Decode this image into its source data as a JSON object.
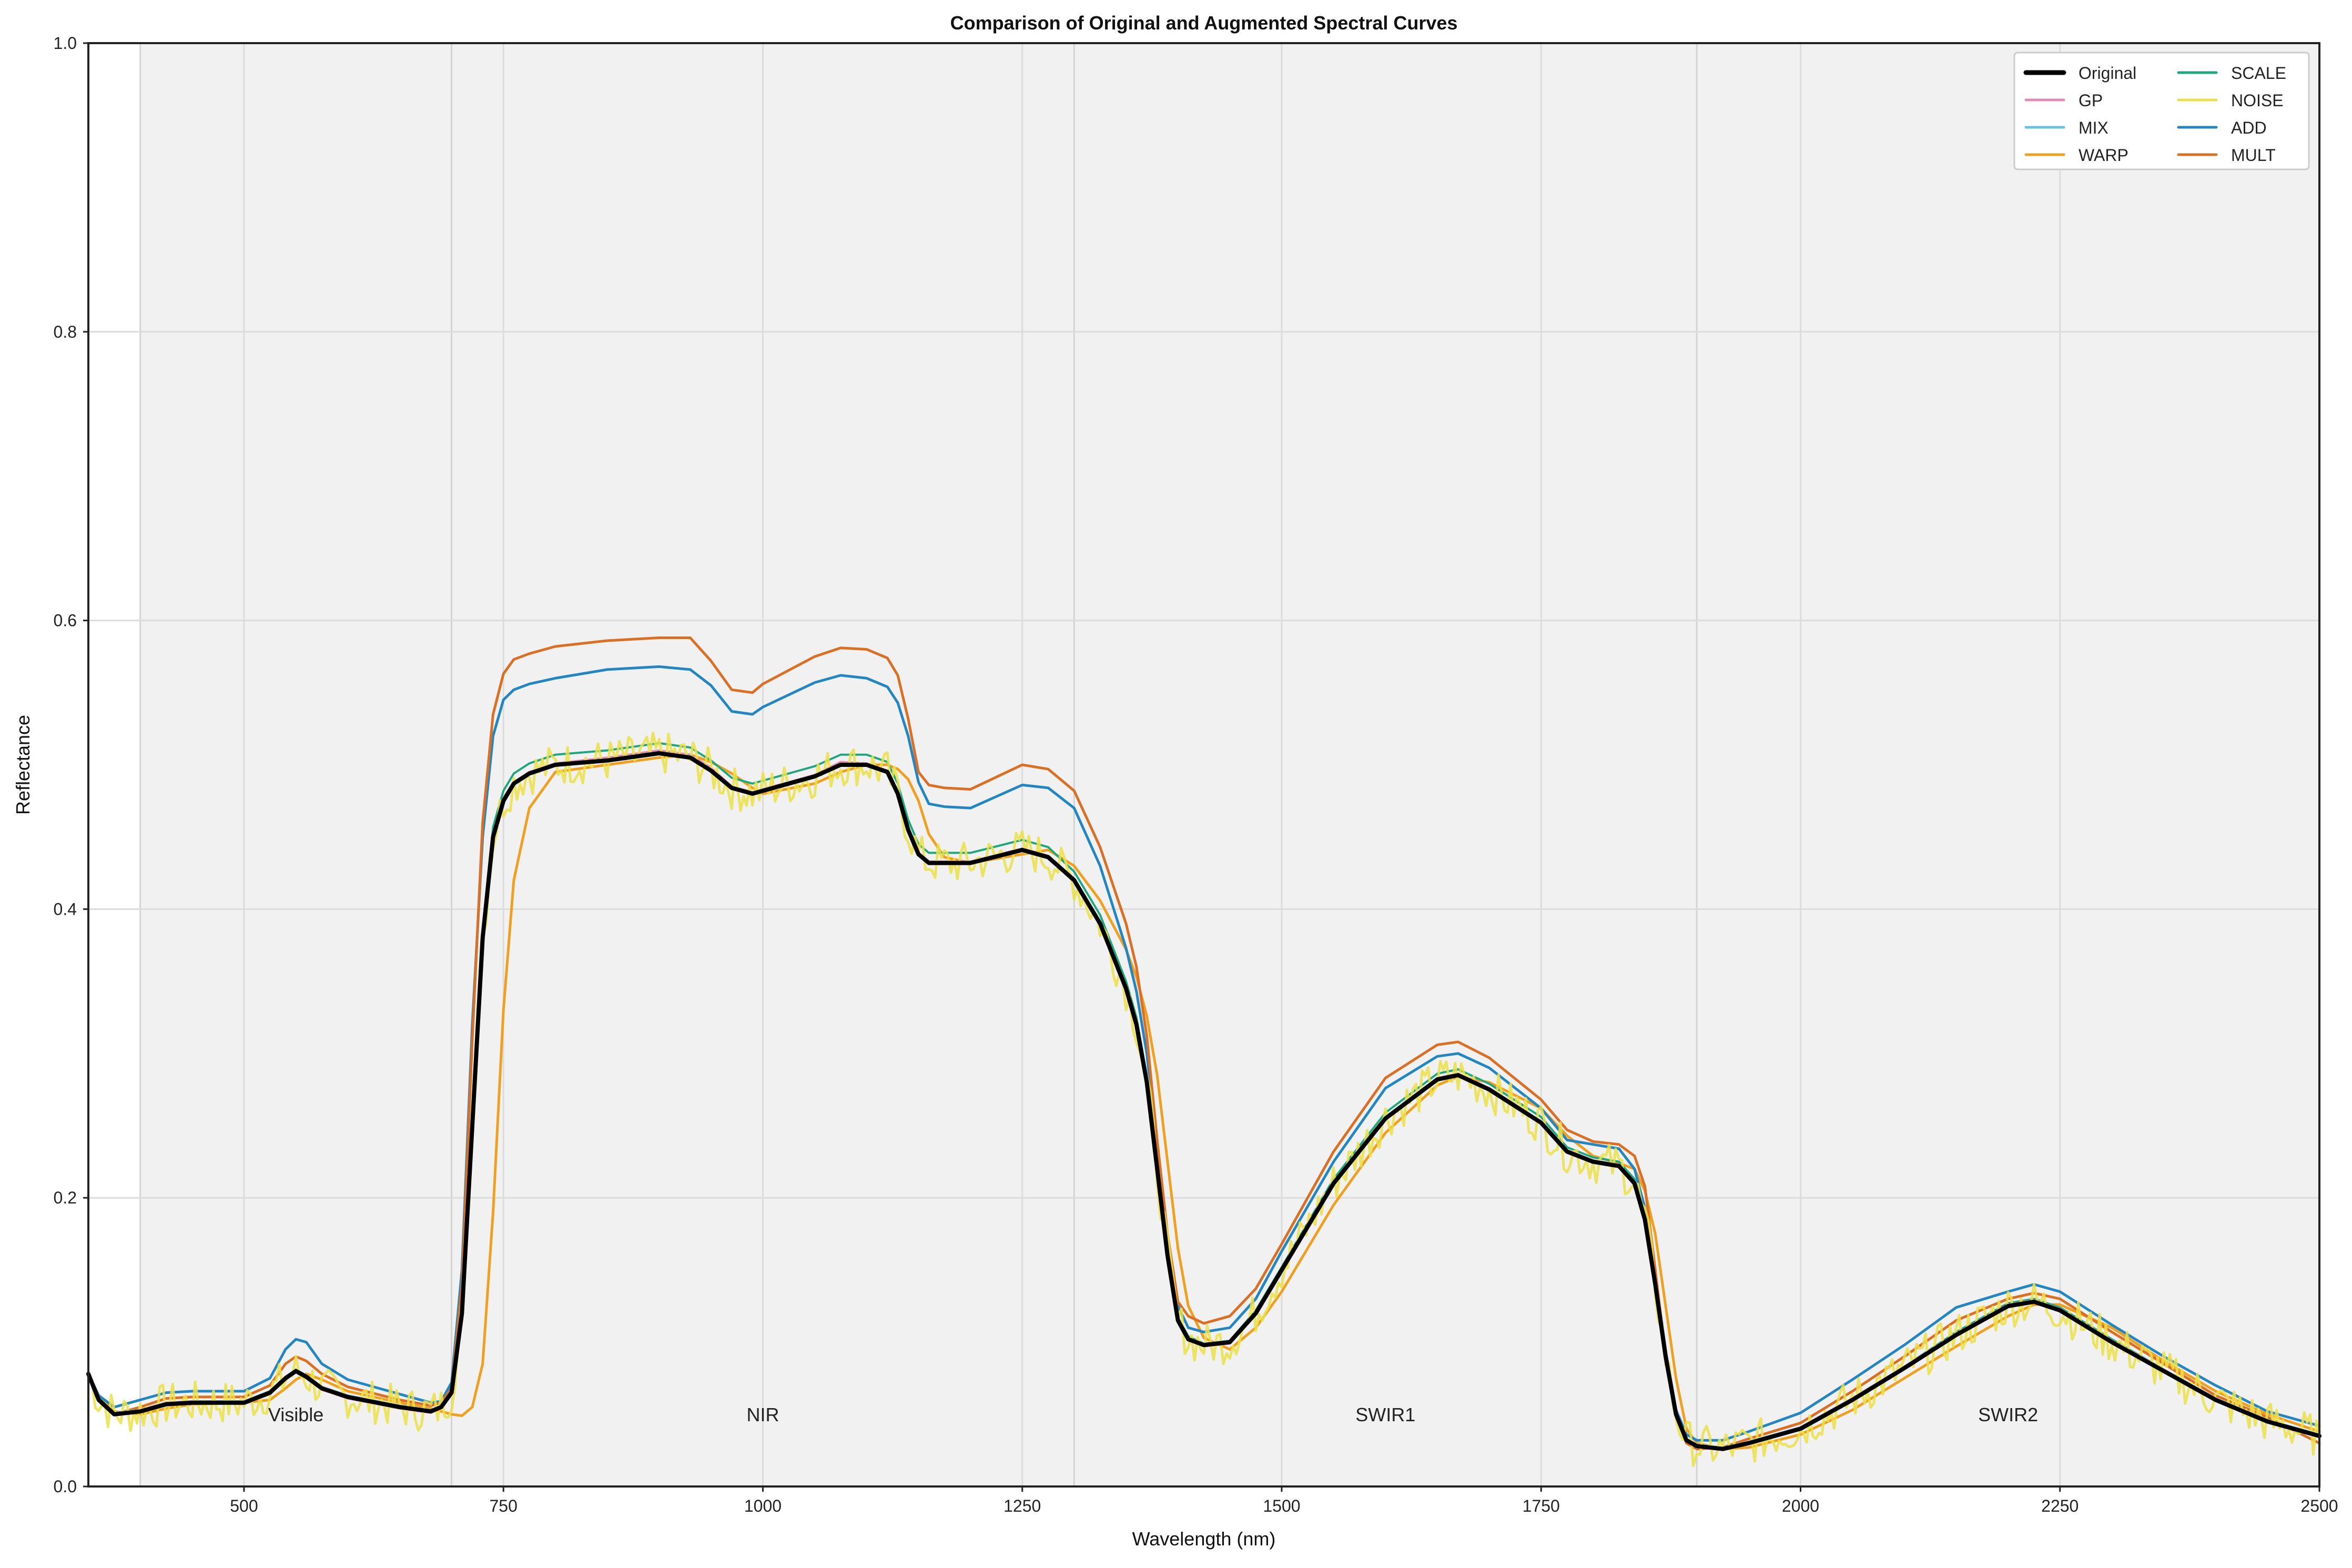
{
  "chart_data": {
    "type": "line",
    "title": "Comparison of Original and Augmented Spectral Curves",
    "xlabel": "Wavelength (nm)",
    "ylabel": "Reflectance",
    "xlim": [
      350,
      2500
    ],
    "ylim": [
      0.0,
      1.0
    ],
    "xticks": [
      "500",
      "750",
      "1000",
      "1250",
      "1500",
      "1750",
      "2000",
      "2250",
      "2500"
    ],
    "yticks": [
      "0.0",
      "0.2",
      "0.4",
      "0.6",
      "0.8",
      "1.0"
    ],
    "grid": true,
    "legend_position": "top-right",
    "regions": [
      {
        "label": "Visible",
        "start": 400,
        "end": 700
      },
      {
        "label": "NIR",
        "start": 700,
        "end": 1300
      },
      {
        "label": "SWIR1",
        "start": 1300,
        "end": 1900
      },
      {
        "label": "SWIR2",
        "start": 1900,
        "end": 2500
      }
    ],
    "x": [
      350,
      360,
      375,
      400,
      425,
      450,
      500,
      525,
      540,
      550,
      560,
      575,
      600,
      650,
      680,
      690,
      700,
      710,
      720,
      730,
      740,
      750,
      760,
      775,
      800,
      850,
      900,
      930,
      950,
      970,
      990,
      1000,
      1050,
      1075,
      1100,
      1120,
      1130,
      1140,
      1150,
      1160,
      1175,
      1200,
      1250,
      1275,
      1300,
      1325,
      1350,
      1360,
      1370,
      1380,
      1390,
      1400,
      1410,
      1425,
      1450,
      1475,
      1500,
      1550,
      1600,
      1650,
      1670,
      1700,
      1750,
      1775,
      1800,
      1825,
      1840,
      1850,
      1860,
      1870,
      1880,
      1890,
      1900,
      1925,
      1950,
      2000,
      2050,
      2100,
      2150,
      2200,
      2225,
      2250,
      2300,
      2350,
      2400,
      2450,
      2500
    ],
    "series": [
      {
        "name": "Original",
        "color": "#000000",
        "width": 8,
        "values": [
          0.078,
          0.06,
          0.05,
          0.052,
          0.057,
          0.058,
          0.058,
          0.065,
          0.075,
          0.08,
          0.076,
          0.068,
          0.062,
          0.055,
          0.052,
          0.055,
          0.065,
          0.12,
          0.25,
          0.38,
          0.45,
          0.475,
          0.487,
          0.494,
          0.5,
          0.503,
          0.508,
          0.505,
          0.496,
          0.484,
          0.48,
          0.482,
          0.492,
          0.5,
          0.5,
          0.495,
          0.48,
          0.455,
          0.438,
          0.432,
          0.432,
          0.432,
          0.441,
          0.436,
          0.42,
          0.39,
          0.345,
          0.32,
          0.28,
          0.22,
          0.16,
          0.115,
          0.102,
          0.098,
          0.1,
          0.12,
          0.15,
          0.21,
          0.255,
          0.282,
          0.285,
          0.275,
          0.252,
          0.232,
          0.225,
          0.222,
          0.21,
          0.185,
          0.14,
          0.09,
          0.05,
          0.032,
          0.028,
          0.026,
          0.03,
          0.04,
          0.06,
          0.082,
          0.105,
          0.125,
          0.128,
          0.122,
          0.1,
          0.08,
          0.06,
          0.045,
          0.035
        ]
      },
      {
        "name": "GP",
        "color": "#e08ab5",
        "width": 4,
        "values": [
          0.077,
          0.06,
          0.05,
          0.053,
          0.058,
          0.059,
          0.057,
          0.064,
          0.074,
          0.079,
          0.075,
          0.067,
          0.061,
          0.054,
          0.051,
          0.055,
          0.066,
          0.121,
          0.248,
          0.378,
          0.452,
          0.477,
          0.488,
          0.495,
          0.501,
          0.505,
          0.51,
          0.507,
          0.498,
          0.485,
          0.481,
          0.483,
          0.493,
          0.502,
          0.501,
          0.496,
          0.481,
          0.456,
          0.439,
          0.433,
          0.433,
          0.433,
          0.442,
          0.437,
          0.421,
          0.391,
          0.346,
          0.321,
          0.281,
          0.221,
          0.16,
          0.115,
          0.102,
          0.097,
          0.099,
          0.119,
          0.149,
          0.209,
          0.256,
          0.283,
          0.286,
          0.276,
          0.253,
          0.233,
          0.226,
          0.223,
          0.211,
          0.186,
          0.14,
          0.09,
          0.05,
          0.032,
          0.028,
          0.026,
          0.03,
          0.041,
          0.061,
          0.083,
          0.106,
          0.126,
          0.129,
          0.123,
          0.101,
          0.081,
          0.061,
          0.045,
          0.035
        ]
      },
      {
        "name": "MIX",
        "color": "#6bbfe0",
        "width": 4,
        "values": [
          0.078,
          0.061,
          0.051,
          0.053,
          0.058,
          0.059,
          0.059,
          0.066,
          0.076,
          0.081,
          0.077,
          0.069,
          0.063,
          0.056,
          0.053,
          0.056,
          0.066,
          0.12,
          0.249,
          0.38,
          0.451,
          0.476,
          0.488,
          0.495,
          0.5,
          0.503,
          0.508,
          0.505,
          0.496,
          0.484,
          0.48,
          0.482,
          0.492,
          0.5,
          0.5,
          0.495,
          0.48,
          0.455,
          0.438,
          0.432,
          0.432,
          0.432,
          0.441,
          0.436,
          0.42,
          0.39,
          0.345,
          0.32,
          0.28,
          0.22,
          0.16,
          0.116,
          0.103,
          0.099,
          0.101,
          0.121,
          0.151,
          0.211,
          0.256,
          0.283,
          0.286,
          0.276,
          0.253,
          0.233,
          0.226,
          0.223,
          0.211,
          0.186,
          0.141,
          0.091,
          0.051,
          0.033,
          0.029,
          0.027,
          0.031,
          0.041,
          0.061,
          0.083,
          0.106,
          0.126,
          0.129,
          0.123,
          0.101,
          0.081,
          0.061,
          0.046,
          0.036
        ]
      },
      {
        "name": "WARP",
        "color": "#f0a020",
        "width": 5,
        "values": [
          0.077,
          0.062,
          0.052,
          0.05,
          0.054,
          0.057,
          0.058,
          0.06,
          0.068,
          0.074,
          0.078,
          0.074,
          0.066,
          0.058,
          0.054,
          0.052,
          0.05,
          0.049,
          0.055,
          0.085,
          0.19,
          0.33,
          0.42,
          0.47,
          0.495,
          0.5,
          0.505,
          0.507,
          0.502,
          0.494,
          0.484,
          0.48,
          0.487,
          0.495,
          0.5,
          0.5,
          0.497,
          0.49,
          0.475,
          0.452,
          0.436,
          0.432,
          0.438,
          0.441,
          0.43,
          0.406,
          0.372,
          0.353,
          0.326,
          0.285,
          0.225,
          0.165,
          0.125,
          0.103,
          0.095,
          0.11,
          0.135,
          0.195,
          0.245,
          0.278,
          0.284,
          0.28,
          0.262,
          0.243,
          0.229,
          0.224,
          0.22,
          0.205,
          0.175,
          0.125,
          0.075,
          0.04,
          0.03,
          0.026,
          0.027,
          0.036,
          0.053,
          0.075,
          0.097,
          0.118,
          0.126,
          0.126,
          0.11,
          0.087,
          0.066,
          0.05,
          0.038
        ]
      },
      {
        "name": "SCALE",
        "color": "#1fa67f",
        "width": 4,
        "values": [
          0.079,
          0.061,
          0.051,
          0.053,
          0.058,
          0.059,
          0.059,
          0.066,
          0.076,
          0.081,
          0.077,
          0.069,
          0.063,
          0.056,
          0.053,
          0.056,
          0.066,
          0.122,
          0.254,
          0.386,
          0.457,
          0.482,
          0.494,
          0.501,
          0.507,
          0.51,
          0.515,
          0.512,
          0.503,
          0.491,
          0.487,
          0.489,
          0.499,
          0.507,
          0.507,
          0.502,
          0.487,
          0.462,
          0.445,
          0.439,
          0.439,
          0.439,
          0.448,
          0.443,
          0.426,
          0.396,
          0.35,
          0.325,
          0.284,
          0.223,
          0.162,
          0.117,
          0.104,
          0.099,
          0.101,
          0.122,
          0.152,
          0.213,
          0.259,
          0.286,
          0.289,
          0.279,
          0.256,
          0.235,
          0.228,
          0.225,
          0.213,
          0.188,
          0.142,
          0.091,
          0.051,
          0.032,
          0.028,
          0.026,
          0.03,
          0.041,
          0.061,
          0.083,
          0.107,
          0.127,
          0.13,
          0.124,
          0.102,
          0.081,
          0.061,
          0.046,
          0.036
        ]
      },
      {
        "name": "NOISE",
        "color": "#ebe04a",
        "width": 5,
        "values": [
          0.078,
          0.06,
          0.05,
          0.052,
          0.057,
          0.058,
          0.058,
          0.065,
          0.075,
          0.08,
          0.076,
          0.068,
          0.062,
          0.055,
          0.052,
          0.055,
          0.065,
          0.12,
          0.25,
          0.38,
          0.45,
          0.475,
          0.487,
          0.494,
          0.5,
          0.503,
          0.508,
          0.505,
          0.496,
          0.484,
          0.48,
          0.482,
          0.492,
          0.5,
          0.5,
          0.495,
          0.48,
          0.455,
          0.438,
          0.432,
          0.432,
          0.432,
          0.441,
          0.436,
          0.42,
          0.39,
          0.345,
          0.32,
          0.28,
          0.22,
          0.16,
          0.115,
          0.102,
          0.098,
          0.1,
          0.12,
          0.15,
          0.21,
          0.255,
          0.282,
          0.285,
          0.275,
          0.252,
          0.232,
          0.225,
          0.222,
          0.21,
          0.185,
          0.14,
          0.09,
          0.05,
          0.032,
          0.028,
          0.026,
          0.03,
          0.04,
          0.06,
          0.082,
          0.105,
          0.125,
          0.128,
          0.122,
          0.1,
          0.08,
          0.06,
          0.045,
          0.035
        ]
      },
      {
        "name": "ADD",
        "color": "#2486c0",
        "width": 5,
        "values": [
          0.078,
          0.063,
          0.055,
          0.06,
          0.065,
          0.066,
          0.066,
          0.075,
          0.095,
          0.102,
          0.1,
          0.085,
          0.074,
          0.064,
          0.058,
          0.059,
          0.072,
          0.15,
          0.32,
          0.45,
          0.52,
          0.545,
          0.552,
          0.556,
          0.56,
          0.566,
          0.568,
          0.566,
          0.555,
          0.537,
          0.535,
          0.54,
          0.557,
          0.562,
          0.56,
          0.554,
          0.543,
          0.52,
          0.488,
          0.473,
          0.471,
          0.47,
          0.486,
          0.484,
          0.47,
          0.43,
          0.373,
          0.343,
          0.3,
          0.233,
          0.17,
          0.125,
          0.11,
          0.107,
          0.11,
          0.13,
          0.163,
          0.225,
          0.276,
          0.298,
          0.3,
          0.29,
          0.262,
          0.24,
          0.237,
          0.234,
          0.22,
          0.193,
          0.146,
          0.094,
          0.053,
          0.036,
          0.032,
          0.032,
          0.038,
          0.051,
          0.074,
          0.098,
          0.124,
          0.135,
          0.14,
          0.135,
          0.112,
          0.09,
          0.07,
          0.052,
          0.042
        ]
      },
      {
        "name": "MULT",
        "color": "#d97025",
        "width": 5,
        "values": [
          0.078,
          0.06,
          0.05,
          0.055,
          0.061,
          0.062,
          0.062,
          0.07,
          0.085,
          0.09,
          0.087,
          0.078,
          0.069,
          0.06,
          0.056,
          0.058,
          0.068,
          0.14,
          0.31,
          0.46,
          0.535,
          0.563,
          0.573,
          0.577,
          0.582,
          0.586,
          0.588,
          0.588,
          0.572,
          0.552,
          0.55,
          0.556,
          0.575,
          0.581,
          0.58,
          0.574,
          0.562,
          0.532,
          0.495,
          0.486,
          0.484,
          0.483,
          0.5,
          0.497,
          0.482,
          0.443,
          0.39,
          0.36,
          0.312,
          0.24,
          0.175,
          0.128,
          0.118,
          0.113,
          0.118,
          0.137,
          0.168,
          0.232,
          0.283,
          0.306,
          0.308,
          0.297,
          0.268,
          0.247,
          0.239,
          0.237,
          0.229,
          0.208,
          0.15,
          0.09,
          0.052,
          0.03,
          0.026,
          0.027,
          0.033,
          0.044,
          0.066,
          0.09,
          0.115,
          0.13,
          0.134,
          0.13,
          0.107,
          0.085,
          0.063,
          0.048,
          0.03
        ]
      }
    ]
  }
}
